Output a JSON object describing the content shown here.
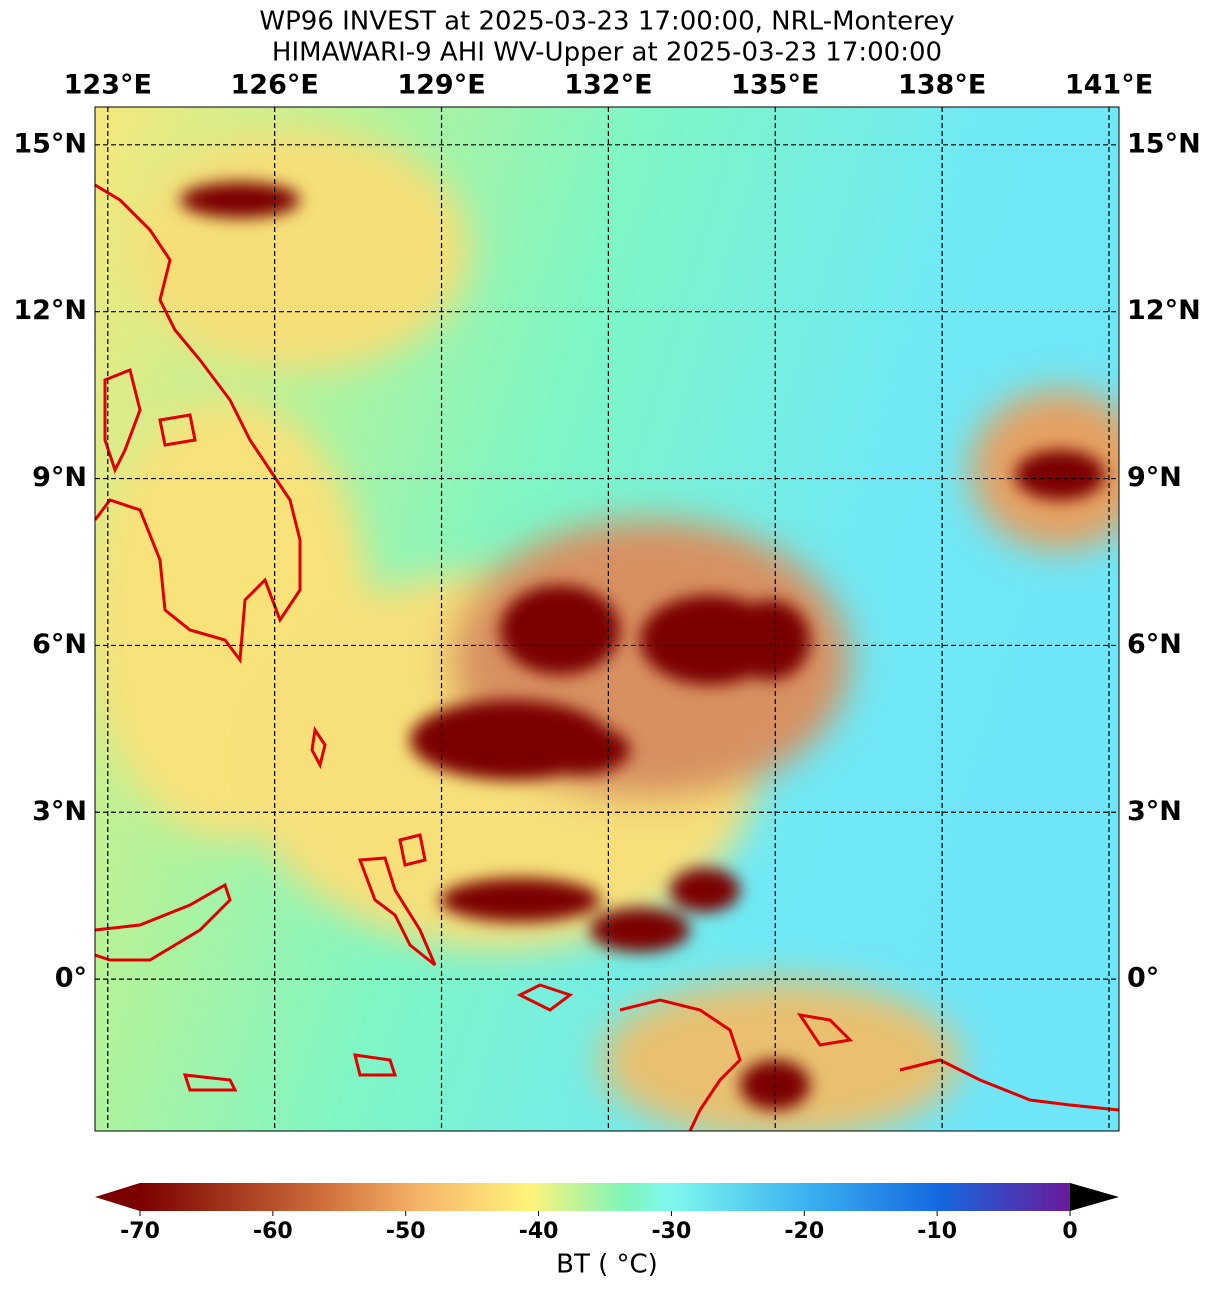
{
  "header": {
    "title_line_1": "WP96 INVEST at 2025-03-23 17:00:00, NRL-Monterey",
    "title_line_2": "HIMAWARI-9 AHI WV-Upper at 2025-03-23 17:00:00"
  },
  "map": {
    "lon_range": [
      122.77,
      141.18
    ],
    "lat_range": [
      -2.73,
      15.68
    ],
    "lon_ticks": [
      {
        "value": 123,
        "label": "123°E"
      },
      {
        "value": 126,
        "label": "126°E"
      },
      {
        "value": 129,
        "label": "129°E"
      },
      {
        "value": 132,
        "label": "132°E"
      },
      {
        "value": 135,
        "label": "135°E"
      },
      {
        "value": 138,
        "label": "138°E"
      },
      {
        "value": 141,
        "label": "141°E"
      }
    ],
    "lat_ticks": [
      {
        "value": 15,
        "label": "15°N"
      },
      {
        "value": 12,
        "label": "12°N"
      },
      {
        "value": 9,
        "label": "9°N"
      },
      {
        "value": 6,
        "label": "6°N"
      },
      {
        "value": 3,
        "label": "3°N"
      },
      {
        "value": 0,
        "label": "0°"
      }
    ]
  },
  "colorbar": {
    "label": "BT ( °C)",
    "clim": [
      -70,
      0
    ],
    "ticks": [
      {
        "value": -70,
        "label": "-70"
      },
      {
        "value": -60,
        "label": "-60"
      },
      {
        "value": -50,
        "label": "-50"
      },
      {
        "value": -40,
        "label": "-40"
      },
      {
        "value": -30,
        "label": "-30"
      },
      {
        "value": -20,
        "label": "-20"
      },
      {
        "value": -10,
        "label": "-10"
      },
      {
        "value": 0,
        "label": "0"
      }
    ]
  }
}
